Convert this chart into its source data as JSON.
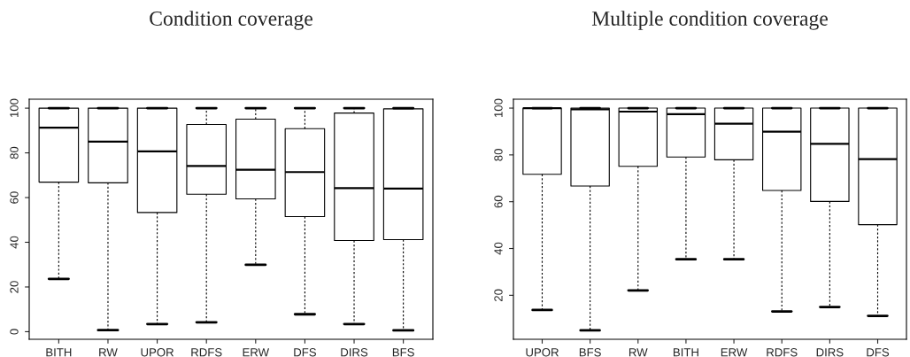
{
  "chart_data": [
    {
      "type": "box",
      "title": "Condition coverage",
      "categories": [
        "BITH",
        "RW",
        "UPOR",
        "RDFS",
        "ERW",
        "DFS",
        "DIRS",
        "BFS"
      ],
      "boxes": [
        {
          "low": 23.6,
          "q1": 66.9,
          "median": 91.3,
          "q3": 100,
          "high": 100
        },
        {
          "low": 0.7,
          "q1": 66.6,
          "median": 85,
          "q3": 100,
          "high": 100
        },
        {
          "low": 3.4,
          "q1": 53.3,
          "median": 80.7,
          "q3": 100,
          "high": 100
        },
        {
          "low": 4.2,
          "q1": 61.5,
          "median": 74.1,
          "q3": 92.7,
          "high": 100
        },
        {
          "low": 29.9,
          "q1": 59.4,
          "median": 72.4,
          "q3": 95.1,
          "high": 100
        },
        {
          "low": 7.8,
          "q1": 51.5,
          "median": 71.4,
          "q3": 90.8,
          "high": 100
        },
        {
          "low": 3.4,
          "q1": 40.8,
          "median": 64.2,
          "q3": 97.8,
          "high": 100
        },
        {
          "low": 0.6,
          "q1": 41.2,
          "median": 64,
          "q3": 99.7,
          "high": 100
        }
      ],
      "ylim": [
        -3.4,
        104
      ],
      "yticks": [
        0,
        20,
        40,
        60,
        80,
        100
      ],
      "grid": false
    },
    {
      "type": "box",
      "title": "Multiple condition coverage",
      "categories": [
        "UPOR",
        "BFS",
        "RW",
        "BITH",
        "ERW",
        "RDFS",
        "DIRS",
        "DFS"
      ],
      "boxes": [
        {
          "low": 13.7,
          "q1": 71.7,
          "median": 100,
          "q3": 100,
          "high": 100
        },
        {
          "low": 5.0,
          "q1": 66.7,
          "median": 99.5,
          "q3": 100,
          "high": 100
        },
        {
          "low": 22.1,
          "q1": 75.1,
          "median": 98.5,
          "q3": 100,
          "high": 100
        },
        {
          "low": 35.4,
          "q1": 79.1,
          "median": 97.4,
          "q3": 100,
          "high": 100
        },
        {
          "low": 35.4,
          "q1": 77.9,
          "median": 93.3,
          "q3": 100,
          "high": 100
        },
        {
          "low": 13.1,
          "q1": 64.8,
          "median": 89.9,
          "q3": 100,
          "high": 100
        },
        {
          "low": 15.0,
          "q1": 60.1,
          "median": 84.7,
          "q3": 100,
          "high": 100
        },
        {
          "low": 11.2,
          "q1": 50.2,
          "median": 78.2,
          "q3": 100,
          "high": 100
        }
      ],
      "ylim": [
        1.2,
        103.8
      ],
      "yticks": [
        20,
        40,
        60,
        80,
        100
      ],
      "grid": false
    }
  ]
}
